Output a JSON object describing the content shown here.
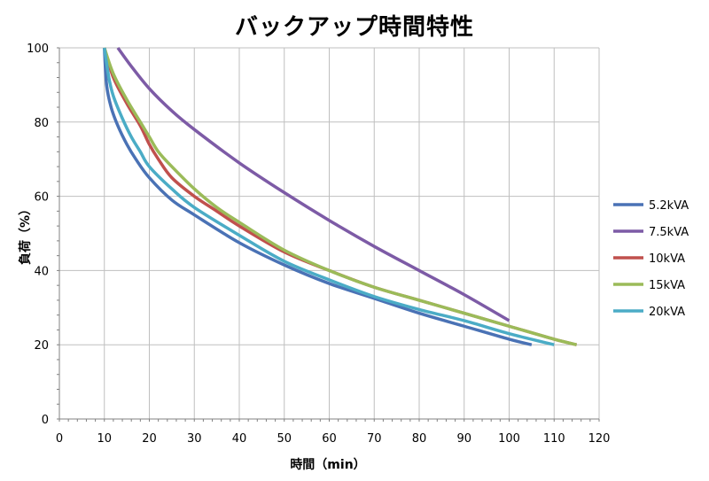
{
  "chart_data": {
    "type": "line",
    "title": "バックアップ時間特性",
    "xlabel": "時間（min）",
    "ylabel": "負荷（%）",
    "xlim": [
      0,
      120
    ],
    "ylim": [
      0,
      100
    ],
    "xticks": [
      0,
      10,
      20,
      30,
      40,
      50,
      60,
      70,
      80,
      90,
      100,
      110,
      120
    ],
    "yticks": [
      0,
      20,
      40,
      60,
      80,
      100
    ],
    "grid": true,
    "legend_position": "right",
    "series": [
      {
        "name": "5.2kVA",
        "color": "#4a72b5",
        "points": [
          [
            10,
            100
          ],
          [
            10.5,
            90
          ],
          [
            11.5,
            84
          ],
          [
            13,
            79
          ],
          [
            15,
            74
          ],
          [
            17,
            70
          ],
          [
            20,
            65
          ],
          [
            25,
            59
          ],
          [
            30,
            55
          ],
          [
            40,
            47.5
          ],
          [
            50,
            41.5
          ],
          [
            60,
            36.5
          ],
          [
            70,
            32.5
          ],
          [
            80,
            28.5
          ],
          [
            90,
            25
          ],
          [
            100,
            21.5
          ],
          [
            105,
            20
          ]
        ]
      },
      {
        "name": "7.5kVA",
        "color": "#7d5ba6",
        "points": [
          [
            13,
            100
          ],
          [
            16,
            95
          ],
          [
            20,
            89
          ],
          [
            25,
            83
          ],
          [
            30,
            78
          ],
          [
            40,
            69
          ],
          [
            50,
            61
          ],
          [
            60,
            53.5
          ],
          [
            70,
            46.5
          ],
          [
            80,
            40
          ],
          [
            90,
            33.5
          ],
          [
            100,
            26.5
          ]
        ]
      },
      {
        "name": "10kVA",
        "color": "#c0504d",
        "points": [
          [
            10,
            100
          ],
          [
            12,
            92
          ],
          [
            15,
            85
          ],
          [
            18,
            79
          ],
          [
            20,
            74
          ],
          [
            22,
            70
          ],
          [
            25,
            65
          ],
          [
            30,
            60
          ],
          [
            35,
            56
          ],
          [
            40,
            52
          ],
          [
            50,
            45
          ],
          [
            60,
            40
          ],
          [
            70,
            35.5
          ],
          [
            80,
            32
          ],
          [
            90,
            28.5
          ],
          [
            100,
            25
          ],
          [
            110,
            21.5
          ],
          [
            115,
            20
          ]
        ]
      },
      {
        "name": "15kVA",
        "color": "#9bbb59",
        "points": [
          [
            10,
            100
          ],
          [
            12,
            93
          ],
          [
            15,
            86
          ],
          [
            18,
            80
          ],
          [
            20,
            76
          ],
          [
            22,
            72
          ],
          [
            25,
            68
          ],
          [
            30,
            62
          ],
          [
            35,
            57
          ],
          [
            40,
            53
          ],
          [
            50,
            45.5
          ],
          [
            60,
            40
          ],
          [
            70,
            35.5
          ],
          [
            80,
            32
          ],
          [
            90,
            28.5
          ],
          [
            100,
            25
          ],
          [
            110,
            21.5
          ],
          [
            115,
            20
          ]
        ]
      },
      {
        "name": "20kVA",
        "color": "#4bacc6",
        "points": [
          [
            10,
            100
          ],
          [
            11,
            92
          ],
          [
            12,
            87
          ],
          [
            14,
            81
          ],
          [
            16,
            76
          ],
          [
            18,
            72
          ],
          [
            20,
            68
          ],
          [
            25,
            62
          ],
          [
            30,
            57
          ],
          [
            40,
            49.5
          ],
          [
            50,
            42.5
          ],
          [
            60,
            37.5
          ],
          [
            70,
            33
          ],
          [
            80,
            29.5
          ],
          [
            90,
            26.5
          ],
          [
            100,
            23
          ],
          [
            110,
            20
          ]
        ]
      }
    ]
  }
}
